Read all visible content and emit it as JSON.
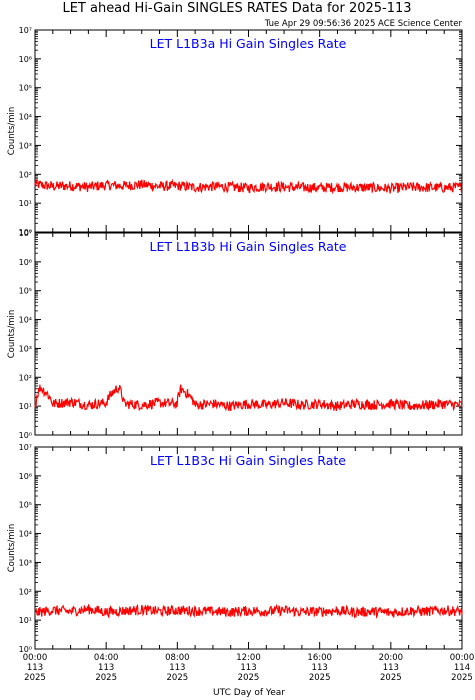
{
  "header": {
    "title": "LET ahead Hi-Gain SINGLES RATES Data for 2025-113",
    "timestamp": "Tue Apr 29 09:56:36 2025 ACE Science Center"
  },
  "colors": {
    "series": "#ff0000",
    "panel_title": "#0000ff",
    "axes": "#000000"
  },
  "chart_data": [
    {
      "type": "line",
      "title": "LET L1B3a Hi Gain Singles Rate",
      "ylabel": "Counts/min",
      "yscale": "log",
      "ylim": [
        1,
        10000000
      ],
      "y_ticks": [
        "10⁰",
        "10¹",
        "10²",
        "10³",
        "10⁴",
        "10⁵",
        "10⁶",
        "10⁷"
      ],
      "x_unit": "hours (UTC, day 113)",
      "xlim": [
        0,
        24
      ],
      "series": [
        {
          "x": [
            0,
            1,
            2,
            3,
            4,
            5,
            6,
            7,
            8,
            9,
            10,
            11,
            12,
            13,
            14,
            15,
            16,
            17,
            18,
            19,
            20,
            21,
            22,
            23,
            24
          ],
          "values": [
            45,
            38,
            40,
            36,
            42,
            40,
            44,
            38,
            40,
            35,
            38,
            36,
            34,
            38,
            36,
            35,
            34,
            36,
            35,
            34,
            32,
            36,
            35,
            34,
            36
          ]
        }
      ]
    },
    {
      "type": "line",
      "title": "LET L1B3b Hi Gain Singles Rate",
      "ylabel": "Counts/min",
      "yscale": "log",
      "ylim": [
        1,
        10000000
      ],
      "y_ticks": [
        "10⁰",
        "10¹",
        "10²",
        "10³",
        "10⁴",
        "10⁵",
        "10⁶",
        "10⁷"
      ],
      "x_unit": "hours (UTC, day 113)",
      "xlim": [
        0,
        24
      ],
      "series": [
        {
          "x": [
            0,
            0.3,
            1,
            2,
            3,
            4,
            4.7,
            5,
            6,
            7,
            8,
            8.2,
            9,
            10,
            11,
            12,
            13,
            14,
            15,
            16,
            17,
            18,
            19,
            20,
            21,
            22,
            23,
            24
          ],
          "values": [
            9,
            45,
            12,
            14,
            11,
            13,
            45,
            12,
            11,
            13,
            12,
            40,
            11,
            12,
            10,
            12,
            11,
            13,
            11,
            12,
            10,
            12,
            11,
            12,
            10,
            11,
            12,
            11
          ]
        }
      ]
    },
    {
      "type": "line",
      "title": "LET L1B3c Hi Gain Singles Rate",
      "ylabel": "Counts/min",
      "yscale": "log",
      "ylim": [
        1,
        10000000
      ],
      "y_ticks": [
        "10⁰",
        "10¹",
        "10²",
        "10³",
        "10⁴",
        "10⁵",
        "10⁶",
        "10⁷"
      ],
      "x_unit": "hours (UTC, day 113)",
      "xlim": [
        0,
        24
      ],
      "series": [
        {
          "x": [
            0,
            1,
            2,
            3,
            4,
            5,
            6,
            7,
            8,
            9,
            10,
            11,
            12,
            13,
            14,
            15,
            16,
            17,
            18,
            19,
            20,
            21,
            22,
            23,
            24
          ],
          "values": [
            18,
            22,
            20,
            24,
            19,
            21,
            23,
            20,
            22,
            21,
            20,
            19,
            21,
            20,
            22,
            19,
            20,
            21,
            19,
            20,
            18,
            21,
            20,
            22,
            20
          ]
        }
      ]
    }
  ],
  "x_axis": {
    "label": "UTC Day of Year",
    "ticks": [
      {
        "time": "00:00",
        "doy": "113",
        "year": "2025"
      },
      {
        "time": "04:00",
        "doy": "113",
        "year": "2025"
      },
      {
        "time": "08:00",
        "doy": "113",
        "year": "2025"
      },
      {
        "time": "12:00",
        "doy": "113",
        "year": "2025"
      },
      {
        "time": "16:00",
        "doy": "113",
        "year": "2025"
      },
      {
        "time": "20:00",
        "doy": "113",
        "year": "2025"
      },
      {
        "time": "00:00",
        "doy": "114",
        "year": "2025"
      }
    ]
  }
}
